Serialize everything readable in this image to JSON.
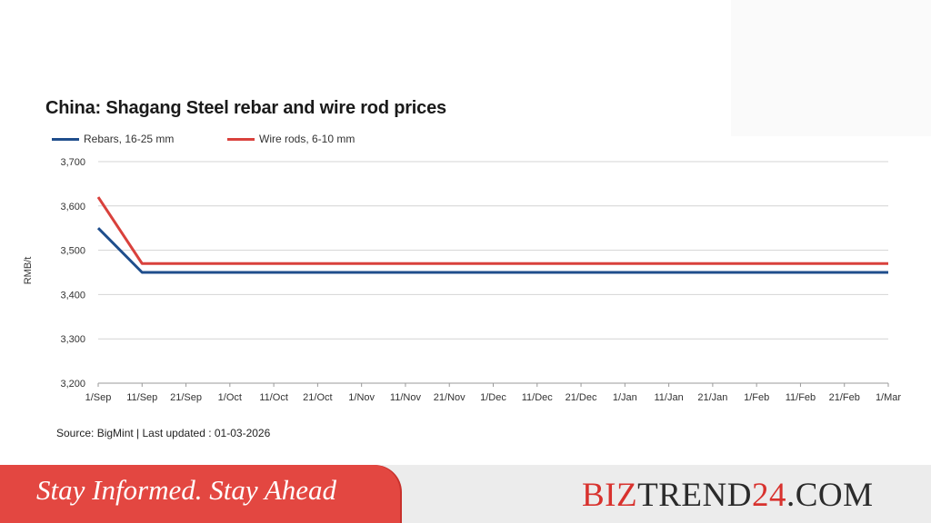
{
  "chart_data": {
    "type": "line",
    "title": "China: Shagang Steel rebar and wire rod prices",
    "ylabel": "RMB/t",
    "xlabel": "",
    "ylim": [
      3200,
      3700
    ],
    "yticks": [
      "3,200",
      "3,300",
      "3,400",
      "3,500",
      "3,600",
      "3,700"
    ],
    "ytick_values": [
      3200,
      3300,
      3400,
      3500,
      3600,
      3700
    ],
    "categories": [
      "1/Sep",
      "11/Sep",
      "21/Sep",
      "1/Oct",
      "11/Oct",
      "21/Oct",
      "1/Nov",
      "11/Nov",
      "21/Nov",
      "1/Dec",
      "11/Dec",
      "21/Dec",
      "1/Jan",
      "11/Jan",
      "21/Jan",
      "1/Feb",
      "11/Feb",
      "21/Feb",
      "1/Mar"
    ],
    "grid": true,
    "legend_position": "top-left",
    "series": [
      {
        "name": "Rebars, 16-25 mm",
        "color": "#1f4e8c",
        "values": [
          3550,
          3450,
          3450,
          3450,
          3450,
          3450,
          3450,
          3450,
          3450,
          3450,
          3450,
          3450,
          3450,
          3450,
          3450,
          3450,
          3450,
          3450,
          3450
        ]
      },
      {
        "name": "Wire rods, 6-10 mm",
        "color": "#d9413c",
        "values": [
          3620,
          3470,
          3470,
          3470,
          3470,
          3470,
          3470,
          3470,
          3470,
          3470,
          3470,
          3470,
          3470,
          3470,
          3470,
          3470,
          3470,
          3470,
          3470
        ]
      }
    ]
  },
  "source": "Source: BigMint | Last updated : 01-03-2026",
  "banner": {
    "tagline": "Stay Informed. Stay Ahead",
    "brand_part1": "BIZ",
    "brand_part2": "TREND",
    "brand_part3": "24",
    "brand_part4": ".COM",
    "accent_color": "#e34741"
  }
}
